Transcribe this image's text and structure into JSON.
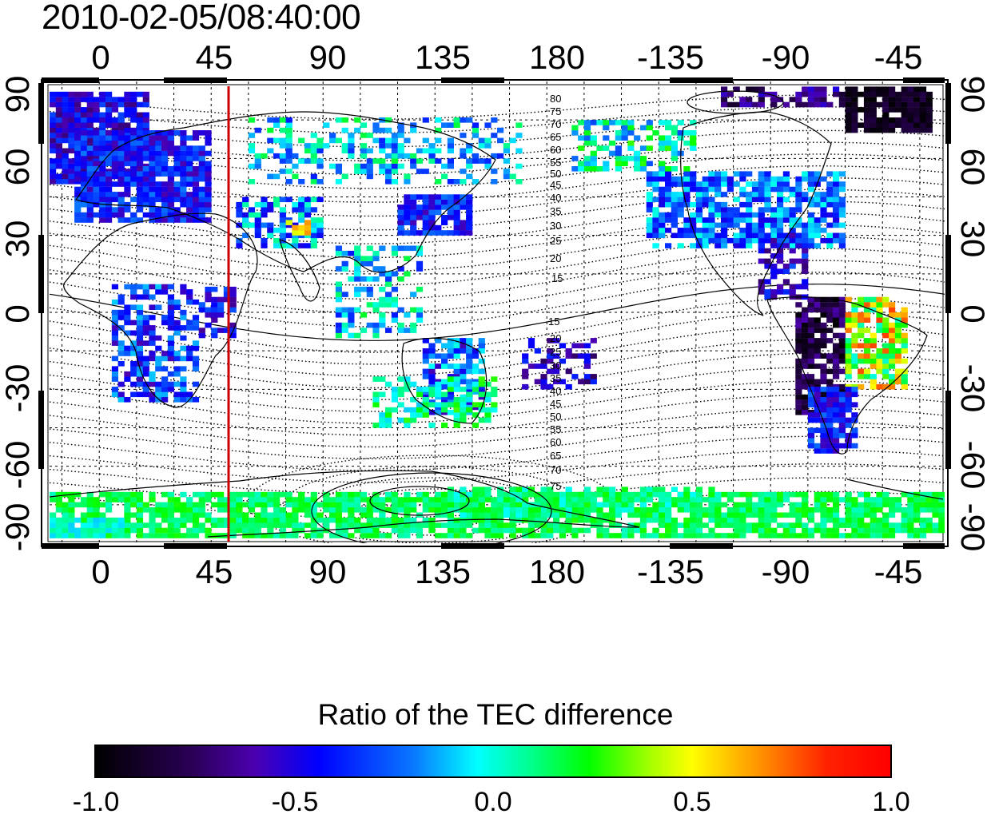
{
  "title": "2010-02-05/08:40:00",
  "map": {
    "lon_ticks": [
      "0",
      "45",
      "90",
      "135",
      "180",
      "-135",
      "-90",
      "-45"
    ],
    "lat_ticks": [
      "90",
      "60",
      "30",
      "0",
      "-30",
      "-60",
      "-90"
    ],
    "meridian_marker_lon": 50,
    "marker_color": "#cc0000",
    "contour_labels_north": [
      "80",
      "75",
      "70",
      "65",
      "60",
      "55",
      "50",
      "45",
      "40",
      "35",
      "30",
      "25",
      "20",
      "15"
    ],
    "contour_labels_south": [
      "15",
      "20",
      "25",
      "30",
      "35",
      "40",
      "45",
      "50",
      "55",
      "60",
      "65",
      "70",
      "75"
    ]
  },
  "colorbar": {
    "title": "Ratio of the TEC difference",
    "labels": [
      "-1.0",
      "-0.5",
      "0.0",
      "0.5",
      "1.0"
    ],
    "range": [
      -1.0,
      1.0
    ]
  }
}
